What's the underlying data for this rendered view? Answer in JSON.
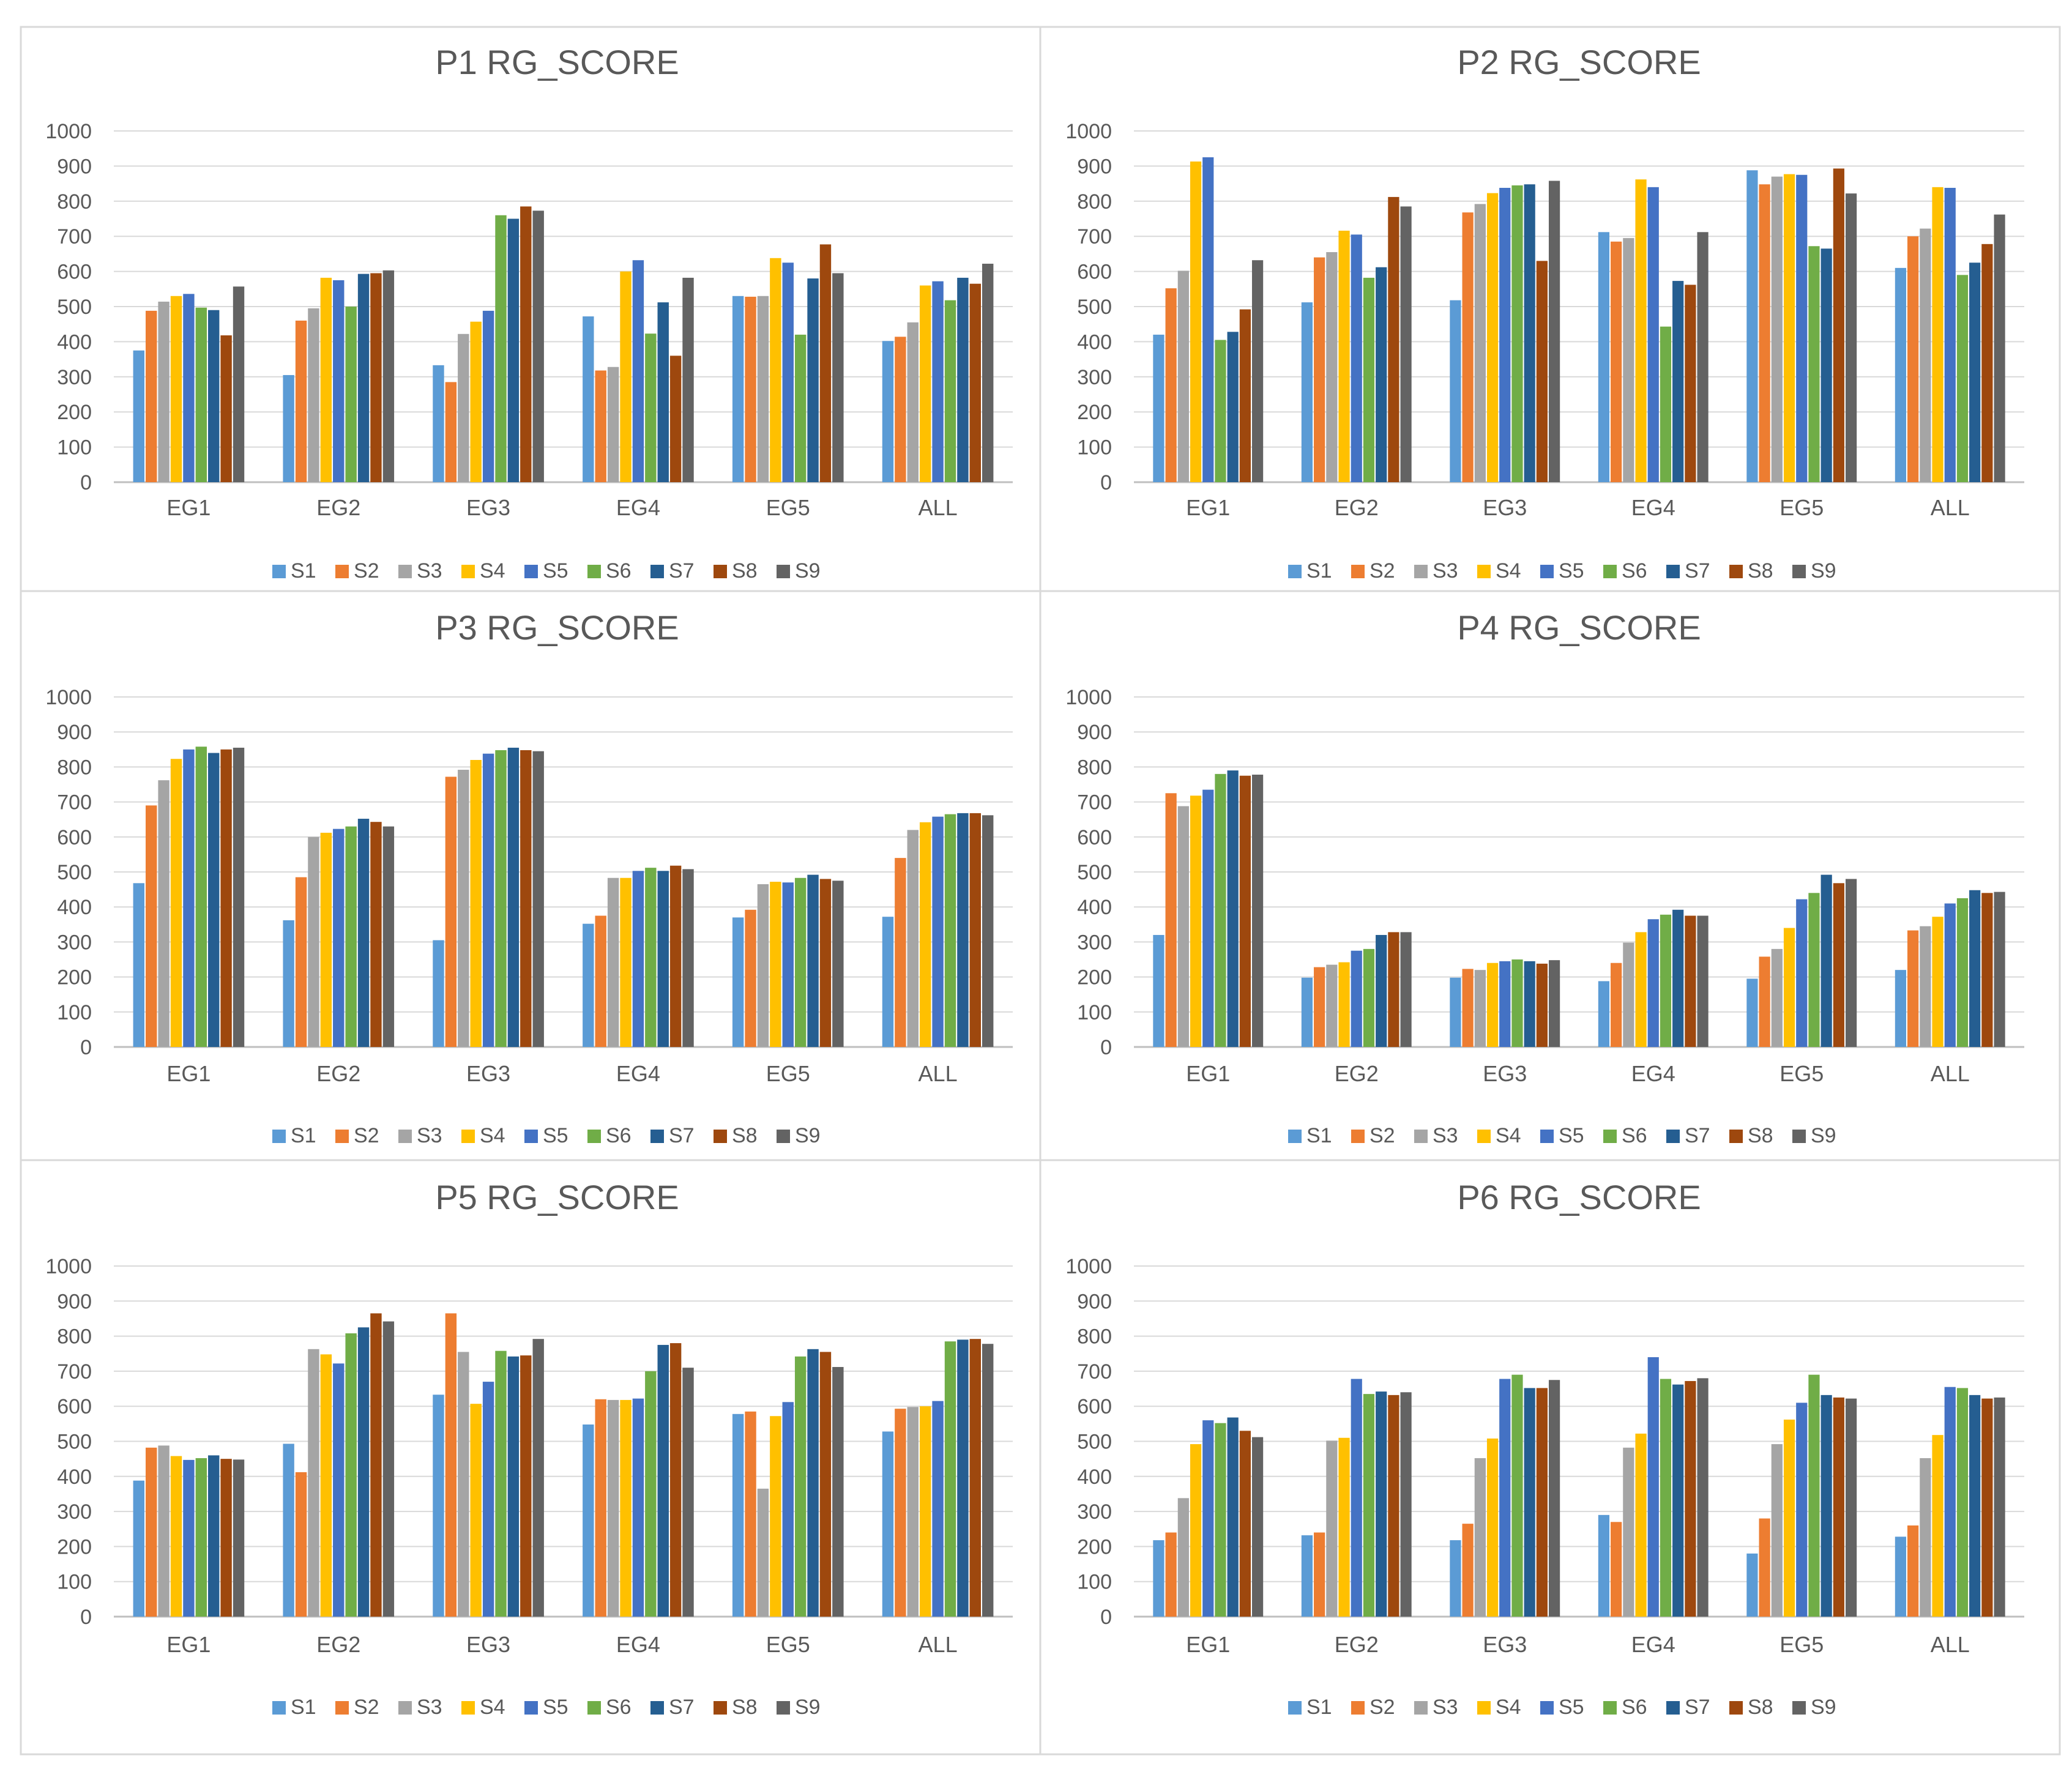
{
  "legend_series": [
    "S1",
    "S2",
    "S3",
    "S4",
    "S5",
    "S6",
    "S7",
    "S8",
    "S9"
  ],
  "series_colors": [
    "#5b9bd5",
    "#ed7d31",
    "#a5a5a5",
    "#ffc000",
    "#4472c4",
    "#70ad47",
    "#255e91",
    "#9e480e",
    "#636363"
  ],
  "chart_data": [
    {
      "type": "bar",
      "title": "P1 RG_SCORE",
      "categories": [
        "EG1",
        "EG2",
        "EG3",
        "EG4",
        "EG5",
        "ALL"
      ],
      "ylim": [
        0,
        1000
      ],
      "yticks": [
        "0",
        "100",
        "200",
        "300",
        "400",
        "500",
        "600",
        "700",
        "800",
        "900",
        "1000"
      ],
      "xlabel": "",
      "ylabel": "",
      "series": [
        {
          "name": "S1",
          "values": [
            375,
            305,
            333,
            472,
            530,
            402
          ]
        },
        {
          "name": "S2",
          "values": [
            488,
            460,
            285,
            318,
            528,
            414
          ]
        },
        {
          "name": "S3",
          "values": [
            514,
            495,
            422,
            328,
            530,
            455
          ]
        },
        {
          "name": "S4",
          "values": [
            530,
            582,
            457,
            600,
            638,
            560
          ]
        },
        {
          "name": "S5",
          "values": [
            536,
            575,
            488,
            632,
            625,
            572
          ]
        },
        {
          "name": "S6",
          "values": [
            497,
            500,
            760,
            423,
            420,
            518
          ]
        },
        {
          "name": "S7",
          "values": [
            490,
            593,
            750,
            512,
            580,
            582
          ]
        },
        {
          "name": "S8",
          "values": [
            418,
            595,
            785,
            360,
            677,
            565
          ]
        },
        {
          "name": "S9",
          "values": [
            557,
            603,
            773,
            582,
            595,
            622
          ]
        }
      ]
    },
    {
      "type": "bar",
      "title": "P2 RG_SCORE",
      "categories": [
        "EG1",
        "EG2",
        "EG3",
        "EG4",
        "EG5",
        "ALL"
      ],
      "ylim": [
        0,
        1000
      ],
      "yticks": [
        "0",
        "100",
        "200",
        "300",
        "400",
        "500",
        "600",
        "700",
        "800",
        "900",
        "1000"
      ],
      "xlabel": "",
      "ylabel": "",
      "series": [
        {
          "name": "S1",
          "values": [
            420,
            512,
            518,
            712,
            888,
            610
          ]
        },
        {
          "name": "S2",
          "values": [
            552,
            640,
            768,
            685,
            848,
            700
          ]
        },
        {
          "name": "S3",
          "values": [
            602,
            655,
            792,
            695,
            870,
            722
          ]
        },
        {
          "name": "S4",
          "values": [
            913,
            716,
            823,
            862,
            877,
            840
          ]
        },
        {
          "name": "S5",
          "values": [
            925,
            705,
            838,
            840,
            875,
            838
          ]
        },
        {
          "name": "S6",
          "values": [
            405,
            582,
            845,
            443,
            672,
            590
          ]
        },
        {
          "name": "S7",
          "values": [
            428,
            612,
            848,
            573,
            665,
            625
          ]
        },
        {
          "name": "S8",
          "values": [
            492,
            812,
            630,
            562,
            893,
            678
          ]
        },
        {
          "name": "S9",
          "values": [
            632,
            785,
            858,
            712,
            822,
            762
          ]
        }
      ]
    },
    {
      "type": "bar",
      "title": "P3 RG_SCORE",
      "categories": [
        "EG1",
        "EG2",
        "EG3",
        "EG4",
        "EG5",
        "ALL"
      ],
      "ylim": [
        0,
        1000
      ],
      "yticks": [
        "0",
        "100",
        "200",
        "300",
        "400",
        "500",
        "600",
        "700",
        "800",
        "900",
        "1000"
      ],
      "xlabel": "",
      "ylabel": "",
      "series": [
        {
          "name": "S1",
          "values": [
            468,
            362,
            305,
            352,
            370,
            372
          ]
        },
        {
          "name": "S2",
          "values": [
            690,
            485,
            772,
            375,
            392,
            540
          ]
        },
        {
          "name": "S3",
          "values": [
            762,
            600,
            792,
            483,
            465,
            620
          ]
        },
        {
          "name": "S4",
          "values": [
            823,
            612,
            820,
            483,
            472,
            642
          ]
        },
        {
          "name": "S5",
          "values": [
            850,
            623,
            838,
            503,
            470,
            658
          ]
        },
        {
          "name": "S6",
          "values": [
            858,
            630,
            848,
            512,
            483,
            665
          ]
        },
        {
          "name": "S7",
          "values": [
            840,
            652,
            855,
            503,
            492,
            668
          ]
        },
        {
          "name": "S8",
          "values": [
            850,
            643,
            848,
            518,
            480,
            668
          ]
        },
        {
          "name": "S9",
          "values": [
            855,
            630,
            845,
            508,
            475,
            662
          ]
        }
      ]
    },
    {
      "type": "bar",
      "title": "P4 RG_SCORE",
      "categories": [
        "EG1",
        "EG2",
        "EG3",
        "EG4",
        "EG5",
        "ALL"
      ],
      "ylim": [
        0,
        1000
      ],
      "yticks": [
        "0",
        "100",
        "200",
        "300",
        "400",
        "500",
        "600",
        "700",
        "800",
        "900",
        "1000"
      ],
      "xlabel": "",
      "ylabel": "",
      "series": [
        {
          "name": "S1",
          "values": [
            320,
            198,
            198,
            188,
            195,
            220
          ]
        },
        {
          "name": "S2",
          "values": [
            725,
            228,
            223,
            240,
            258,
            333
          ]
        },
        {
          "name": "S3",
          "values": [
            688,
            235,
            220,
            298,
            280,
            345
          ]
        },
        {
          "name": "S4",
          "values": [
            718,
            242,
            240,
            328,
            340,
            372
          ]
        },
        {
          "name": "S5",
          "values": [
            735,
            275,
            245,
            365,
            422,
            410
          ]
        },
        {
          "name": "S6",
          "values": [
            780,
            280,
            250,
            378,
            440,
            425
          ]
        },
        {
          "name": "S7",
          "values": [
            790,
            320,
            245,
            392,
            492,
            448
          ]
        },
        {
          "name": "S8",
          "values": [
            775,
            328,
            238,
            375,
            468,
            440
          ]
        },
        {
          "name": "S9",
          "values": [
            778,
            328,
            248,
            375,
            480,
            443
          ]
        }
      ]
    },
    {
      "type": "bar",
      "title": "P5 RG_SCORE",
      "categories": [
        "EG1",
        "EG2",
        "EG3",
        "EG4",
        "EG5",
        "ALL"
      ],
      "ylim": [
        0,
        1000
      ],
      "yticks": [
        "0",
        "100",
        "200",
        "300",
        "400",
        "500",
        "600",
        "700",
        "800",
        "900",
        "1000"
      ],
      "xlabel": "",
      "ylabel": "",
      "series": [
        {
          "name": "S1",
          "values": [
            388,
            493,
            633,
            548,
            578,
            528
          ]
        },
        {
          "name": "S2",
          "values": [
            482,
            412,
            865,
            620,
            585,
            593
          ]
        },
        {
          "name": "S3",
          "values": [
            488,
            763,
            755,
            618,
            365,
            598
          ]
        },
        {
          "name": "S4",
          "values": [
            458,
            748,
            607,
            618,
            572,
            600
          ]
        },
        {
          "name": "S5",
          "values": [
            447,
            722,
            670,
            622,
            612,
            615
          ]
        },
        {
          "name": "S6",
          "values": [
            452,
            808,
            758,
            700,
            742,
            785
          ]
        },
        {
          "name": "S7",
          "values": [
            460,
            825,
            742,
            775,
            763,
            790
          ]
        },
        {
          "name": "S8",
          "values": [
            450,
            865,
            745,
            780,
            755,
            792
          ]
        },
        {
          "name": "S9",
          "values": [
            448,
            842,
            792,
            710,
            712,
            778
          ]
        }
      ]
    },
    {
      "type": "bar",
      "title": "P6 RG_SCORE",
      "categories": [
        "EG1",
        "EG2",
        "EG3",
        "EG4",
        "EG5",
        "ALL"
      ],
      "ylim": [
        0,
        1000
      ],
      "yticks": [
        "0",
        "100",
        "200",
        "300",
        "400",
        "500",
        "600",
        "700",
        "800",
        "900",
        "1000"
      ],
      "xlabel": "",
      "ylabel": "",
      "series": [
        {
          "name": "S1",
          "values": [
            218,
            232,
            218,
            290,
            180,
            228
          ]
        },
        {
          "name": "S2",
          "values": [
            240,
            240,
            265,
            270,
            280,
            260
          ]
        },
        {
          "name": "S3",
          "values": [
            338,
            502,
            452,
            482,
            492,
            452
          ]
        },
        {
          "name": "S4",
          "values": [
            492,
            510,
            508,
            522,
            562,
            518
          ]
        },
        {
          "name": "S5",
          "values": [
            560,
            678,
            678,
            740,
            610,
            655
          ]
        },
        {
          "name": "S6",
          "values": [
            552,
            635,
            690,
            678,
            690,
            652
          ]
        },
        {
          "name": "S7",
          "values": [
            568,
            642,
            652,
            662,
            632,
            632
          ]
        },
        {
          "name": "S8",
          "values": [
            530,
            632,
            652,
            672,
            625,
            622
          ]
        },
        {
          "name": "S9",
          "values": [
            512,
            640,
            675,
            680,
            622,
            625
          ]
        }
      ]
    }
  ]
}
